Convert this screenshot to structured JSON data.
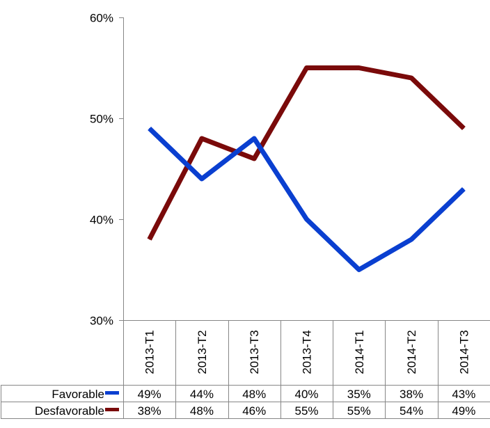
{
  "chart_data": {
    "type": "line",
    "categories": [
      "2013-T1",
      "2013-T2",
      "2013-T3",
      "2013-T4",
      "2014-T1",
      "2014-T2",
      "2014-T3"
    ],
    "series": [
      {
        "name": "Favorable",
        "color": "#0a3fd0",
        "values": [
          49,
          44,
          48,
          40,
          35,
          38,
          43
        ],
        "labels": [
          "49%",
          "44%",
          "48%",
          "40%",
          "35%",
          "38%",
          "43%"
        ]
      },
      {
        "name": "Desfavorable",
        "color": "#7a0a0a",
        "values": [
          38,
          48,
          46,
          55,
          55,
          54,
          49
        ],
        "labels": [
          "38%",
          "48%",
          "46%",
          "55%",
          "55%",
          "54%",
          "49%"
        ]
      }
    ],
    "yticks": [
      30,
      40,
      50,
      60
    ],
    "ytick_labels": [
      "30%",
      "40%",
      "50%",
      "60%"
    ],
    "ylim": [
      30,
      60
    ],
    "grid": false,
    "legend": "data-table"
  }
}
